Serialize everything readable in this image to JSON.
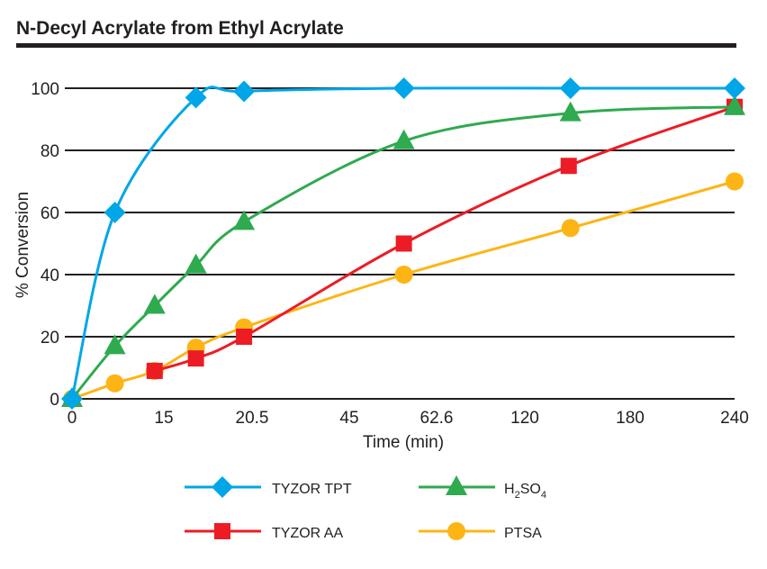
{
  "chart_data": {
    "type": "line",
    "title": "N-Decyl Acrylate from Ethyl Acrylate",
    "xlabel": "Time (min)",
    "ylabel": "% Conversion",
    "x_ticks": [
      "0",
      "15",
      "20.5",
      "45",
      "62.6",
      "120",
      "180",
      "240"
    ],
    "x_tick_values": [
      0,
      15,
      20.5,
      45,
      62.6,
      120,
      180,
      240
    ],
    "y_ticks": [
      "0",
      "20",
      "40",
      "60",
      "80",
      "100"
    ],
    "ylim": [
      0,
      100
    ],
    "grid": "horizontal",
    "legend_placement": "bottom",
    "series": [
      {
        "name": "TYZOR TPT",
        "marker": "diamond",
        "color": "#00a6e8",
        "x": [
          0,
          7,
          17,
          20,
          56,
          146,
          240
        ],
        "y": [
          0,
          60,
          97,
          99,
          100,
          100,
          100
        ]
      },
      {
        "name": "H2SO4",
        "marker": "triangle",
        "color": "#2eaa4f",
        "x": [
          0,
          7,
          13.5,
          17,
          20,
          56,
          146,
          240
        ],
        "y": [
          0,
          17,
          30,
          43,
          57,
          83,
          92,
          94
        ]
      },
      {
        "name": "TYZOR AA",
        "marker": "square",
        "color": "#ec1c24",
        "x": [
          13.5,
          17,
          20,
          56,
          145,
          240
        ],
        "y": [
          9,
          13,
          20,
          50,
          75,
          94
        ]
      },
      {
        "name": "PTSA",
        "marker": "circle",
        "color": "#fdb515",
        "x": [
          0,
          7,
          13.5,
          17,
          20,
          56,
          146,
          240
        ],
        "y": [
          0,
          5,
          9,
          16.5,
          23,
          40,
          55,
          70
        ]
      }
    ],
    "legend": [
      {
        "label": "TYZOR TPT"
      },
      {
        "label_main": "H",
        "sub1": "2",
        "mid": "SO",
        "sub2": "4"
      },
      {
        "label": "TYZOR AA"
      },
      {
        "label": "PTSA"
      }
    ]
  }
}
